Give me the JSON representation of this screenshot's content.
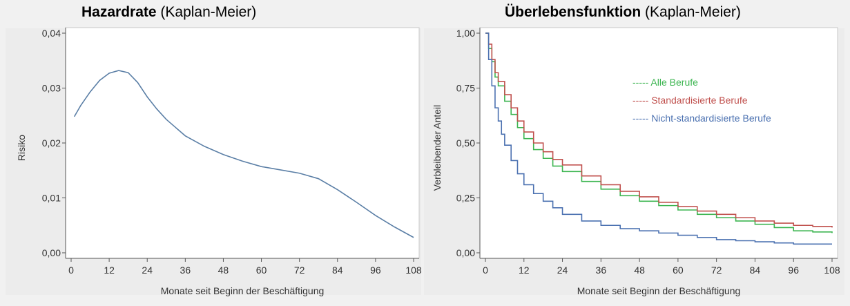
{
  "panels": [
    {
      "title_bold": "Hazardrate",
      "title_rest": " (Kaplan-Meier)"
    },
    {
      "title_bold": "Überlebensfunktion",
      "title_rest": " (Kaplan-Meier)"
    }
  ],
  "chart_data": [
    {
      "type": "line",
      "title": "Hazardrate (Kaplan-Meier)",
      "xlabel": "Monate seit Beginn der Beschäftigung",
      "ylabel": "Risiko",
      "xlim": [
        0,
        108
      ],
      "ylim": [
        0,
        0.04
      ],
      "xticks": [
        0,
        12,
        24,
        36,
        48,
        60,
        72,
        84,
        96,
        108
      ],
      "xtick_labels": [
        "0",
        "12",
        "24",
        "36",
        "48",
        "60",
        "72",
        "84",
        "96",
        "108"
      ],
      "yticks": [
        0,
        0.01,
        0.02,
        0.03,
        0.04
      ],
      "ytick_labels": [
        "0,00",
        "0,01",
        "0,02",
        "0,03",
        "0,04"
      ],
      "grid": false,
      "color": "#5b7fa6",
      "series": [
        {
          "x": [
            1,
            3,
            6,
            9,
            12,
            15,
            18,
            21,
            24,
            27,
            30,
            36,
            42,
            48,
            54,
            60,
            66,
            72,
            78,
            84,
            90,
            96,
            102,
            108
          ],
          "y": [
            0.0248,
            0.0268,
            0.0293,
            0.0314,
            0.0327,
            0.0332,
            0.0328,
            0.031,
            0.0284,
            0.0262,
            0.0243,
            0.0213,
            0.0194,
            0.0179,
            0.0167,
            0.0157,
            0.0151,
            0.0145,
            0.0135,
            0.0115,
            0.0092,
            0.0068,
            0.0047,
            0.0028
          ]
        }
      ]
    },
    {
      "type": "line",
      "title": "Überlebensfunktion (Kaplan-Meier)",
      "xlabel": "Monate seit Beginn der Beschäftigung",
      "ylabel": "Verbleibender Anteil",
      "xlim": [
        0,
        108
      ],
      "ylim": [
        0,
        1
      ],
      "xticks": [
        0,
        12,
        24,
        36,
        48,
        60,
        72,
        84,
        96,
        108
      ],
      "xtick_labels": [
        "0",
        "12",
        "24",
        "36",
        "48",
        "60",
        "72",
        "84",
        "96",
        "108"
      ],
      "yticks": [
        0,
        0.25,
        0.5,
        0.75,
        1.0
      ],
      "ytick_labels": [
        "0,00",
        "0,25",
        "0,50",
        "0,75",
        "1,00"
      ],
      "grid": false,
      "legend_position": "top-right",
      "series": [
        {
          "name": "Alle Berufe",
          "legend_label": "----- Alle Berufe",
          "color": "#3cb550",
          "x": [
            0,
            1,
            2,
            3,
            4,
            6,
            8,
            10,
            12,
            15,
            18,
            21,
            24,
            30,
            36,
            42,
            48,
            54,
            60,
            66,
            72,
            78,
            84,
            90,
            96,
            102,
            108
          ],
          "y": [
            1.0,
            0.93,
            0.87,
            0.8,
            0.76,
            0.69,
            0.63,
            0.57,
            0.52,
            0.47,
            0.43,
            0.395,
            0.37,
            0.325,
            0.29,
            0.26,
            0.235,
            0.215,
            0.195,
            0.175,
            0.16,
            0.145,
            0.13,
            0.115,
            0.1,
            0.095,
            0.09
          ]
        },
        {
          "name": "Standardisierte Berufe",
          "legend_label": "----- Standardisierte Berufe",
          "color": "#c0504d",
          "x": [
            0,
            1,
            2,
            3,
            4,
            6,
            8,
            10,
            12,
            15,
            18,
            21,
            24,
            30,
            36,
            42,
            48,
            54,
            60,
            66,
            72,
            78,
            84,
            90,
            96,
            102,
            108
          ],
          "y": [
            1.0,
            0.95,
            0.88,
            0.82,
            0.78,
            0.72,
            0.66,
            0.6,
            0.55,
            0.5,
            0.46,
            0.425,
            0.4,
            0.35,
            0.31,
            0.28,
            0.255,
            0.23,
            0.21,
            0.19,
            0.175,
            0.16,
            0.145,
            0.135,
            0.125,
            0.12,
            0.115
          ]
        },
        {
          "name": "Nicht-standardisierte Berufe",
          "legend_label": "----- Nicht-standardisierte Berufe",
          "color": "#4a70b0",
          "x": [
            0,
            1,
            2,
            3,
            4,
            5,
            6,
            8,
            10,
            12,
            15,
            18,
            21,
            24,
            30,
            36,
            42,
            48,
            54,
            60,
            66,
            72,
            78,
            84,
            90,
            96,
            102,
            108
          ],
          "y": [
            1.0,
            0.88,
            0.76,
            0.66,
            0.6,
            0.54,
            0.49,
            0.42,
            0.36,
            0.31,
            0.27,
            0.235,
            0.205,
            0.175,
            0.145,
            0.125,
            0.11,
            0.1,
            0.09,
            0.08,
            0.07,
            0.06,
            0.055,
            0.05,
            0.045,
            0.04,
            0.04,
            0.04
          ]
        }
      ]
    }
  ]
}
